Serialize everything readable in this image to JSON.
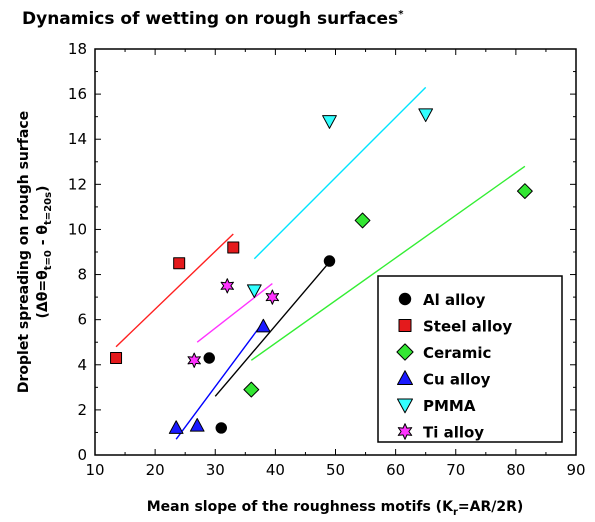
{
  "chart_data": {
    "type": "scatter",
    "title": "Dynamics of wetting on rough surfaces",
    "title_superscript": "*",
    "xlabel": "Mean slope of the roughness motifs (K",
    "xlabel_sub": "r",
    "xlabel_tail": "=AR/2R)",
    "ylabel_line1": "Droplet spreading on rough surface",
    "ylabel_line2": {
      "open": "(Δθ=θ",
      "sub1": "t=0",
      "mid": " - θ",
      "sub2": "t=20s",
      "close": ")"
    },
    "xlim": [
      10,
      90
    ],
    "ylim": [
      0,
      18
    ],
    "xticks": [
      "10",
      "20",
      "30",
      "40",
      "50",
      "60",
      "70",
      "80",
      "90"
    ],
    "yticks": [
      "0",
      "2",
      "4",
      "6",
      "8",
      "10",
      "12",
      "14",
      "16",
      "18"
    ],
    "grid": false,
    "legend_position": "bottom-right",
    "series": [
      {
        "name": "Al alloy",
        "marker": "circle",
        "color": "#000000",
        "points": [
          [
            29,
            4.3
          ],
          [
            31,
            1.2
          ],
          [
            49,
            8.6
          ]
        ],
        "fit": [
          [
            30,
            2.6
          ],
          [
            48.5,
            8.4
          ]
        ],
        "fit_color": "#000000"
      },
      {
        "name": "Steel alloy",
        "marker": "square",
        "color": "#e41a1c",
        "points": [
          [
            13.5,
            4.3
          ],
          [
            24,
            8.5
          ],
          [
            33,
            9.2
          ]
        ],
        "fit": [
          [
            13.5,
            4.8
          ],
          [
            33,
            9.8
          ]
        ],
        "fit_color": "#ff2020"
      },
      {
        "name": "Ceramic",
        "marker": "diamond",
        "color": "#33e633",
        "points": [
          [
            36,
            2.9
          ],
          [
            54.5,
            10.4
          ],
          [
            81.5,
            11.7
          ]
        ],
        "fit": [
          [
            36,
            4.2
          ],
          [
            81.5,
            12.8
          ]
        ],
        "fit_color": "#33ee33"
      },
      {
        "name": "Cu alloy",
        "marker": "triangle-up",
        "color": "#1a1aff",
        "points": [
          [
            23.5,
            1.2
          ],
          [
            27,
            1.3
          ],
          [
            38,
            5.7
          ]
        ],
        "fit": [
          [
            23.5,
            0.7
          ],
          [
            38,
            5.9
          ]
        ],
        "fit_color": "#0000ff"
      },
      {
        "name": "PMMA",
        "marker": "triangle-down",
        "color": "#33ffff",
        "points": [
          [
            36.5,
            7.3
          ],
          [
            49,
            14.8
          ],
          [
            65,
            15.1
          ]
        ],
        "fit": [
          [
            36.5,
            8.7
          ],
          [
            65,
            16.3
          ]
        ],
        "fit_color": "#00e5ff"
      },
      {
        "name": "Ti alloy",
        "marker": "star",
        "color": "#ff33ff",
        "points": [
          [
            26.5,
            4.2
          ],
          [
            32,
            7.5
          ],
          [
            39.5,
            7.0
          ]
        ],
        "fit": [
          [
            27,
            5.0
          ],
          [
            39.5,
            7.6
          ]
        ],
        "fit_color": "#ff33ff"
      }
    ]
  }
}
